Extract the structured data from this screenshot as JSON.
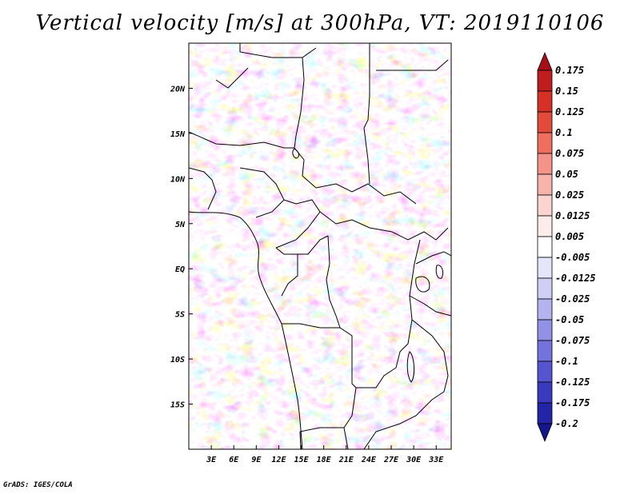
{
  "title": "Vertical velocity [m/s] at 300hPa, VT: 2019110106",
  "credit": "GrADS: IGES/COLA",
  "map": {
    "lon_range": [
      0,
      35
    ],
    "lat_range": [
      -20,
      25
    ],
    "lon_ticks": [
      {
        "value": 3,
        "label": "3E"
      },
      {
        "value": 6,
        "label": "6E"
      },
      {
        "value": 9,
        "label": "9E"
      },
      {
        "value": 12,
        "label": "12E"
      },
      {
        "value": 15,
        "label": "15E"
      },
      {
        "value": 18,
        "label": "18E"
      },
      {
        "value": 21,
        "label": "21E"
      },
      {
        "value": 24,
        "label": "24E"
      },
      {
        "value": 27,
        "label": "27E"
      },
      {
        "value": 30,
        "label": "30E"
      },
      {
        "value": 33,
        "label": "33E"
      }
    ],
    "lat_ticks": [
      {
        "value": 20,
        "label": "20N"
      },
      {
        "value": 15,
        "label": "15N"
      },
      {
        "value": 10,
        "label": "10N"
      },
      {
        "value": 5,
        "label": "5N"
      },
      {
        "value": 0,
        "label": "EQ"
      },
      {
        "value": -5,
        "label": "5S"
      },
      {
        "value": -10,
        "label": "10S"
      },
      {
        "value": -15,
        "label": "15S"
      }
    ]
  },
  "colorbar": {
    "labels": [
      "0.175",
      "0.15",
      "0.125",
      "0.1",
      "0.075",
      "0.05",
      "0.025",
      "0.0125",
      "0.005",
      "-0.005",
      "-0.0125",
      "-0.025",
      "-0.05",
      "-0.075",
      "-0.1",
      "-0.125",
      "-0.175",
      "-0.2"
    ],
    "colors": [
      "#a50f15",
      "#c01e1e",
      "#d73027",
      "#e34a3a",
      "#ef6e5e",
      "#f4938a",
      "#f8b4ac",
      "#fbd3cf",
      "#fdecea",
      "#ffffff",
      "#e6e6fa",
      "#cfcff5",
      "#b3b3f0",
      "#9191e6",
      "#7373dc",
      "#5555d0",
      "#3a3ac0",
      "#2424a8",
      "#16168c"
    ]
  }
}
